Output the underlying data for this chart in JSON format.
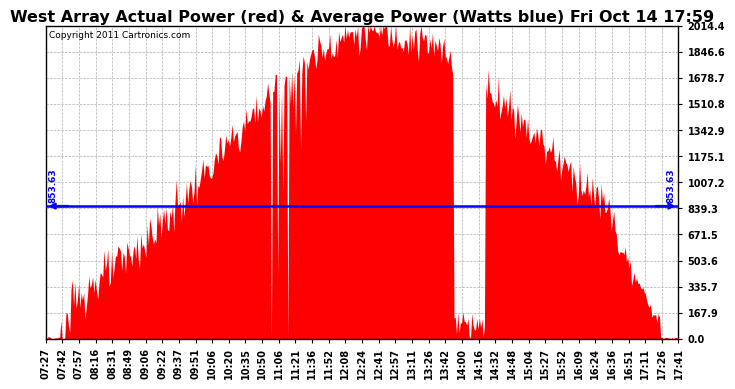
{
  "title": "West Array Actual Power (red) & Average Power (Watts blue) Fri Oct 14 17:59",
  "copyright": "Copyright 2011 Cartronics.com",
  "average_power": 853.63,
  "y_max": 2014.4,
  "y_ticks": [
    0.0,
    167.9,
    335.7,
    503.6,
    671.5,
    839.3,
    1007.2,
    1175.1,
    1342.9,
    1510.8,
    1678.7,
    1846.6,
    2014.4
  ],
  "x_labels": [
    "07:27",
    "07:42",
    "07:57",
    "08:16",
    "08:31",
    "08:49",
    "09:06",
    "09:22",
    "09:37",
    "09:51",
    "10:06",
    "10:20",
    "10:35",
    "10:50",
    "11:06",
    "11:21",
    "11:36",
    "11:52",
    "12:08",
    "12:24",
    "12:41",
    "12:57",
    "13:11",
    "13:26",
    "13:42",
    "14:00",
    "14:16",
    "14:32",
    "14:48",
    "15:04",
    "15:27",
    "15:52",
    "16:09",
    "16:24",
    "16:36",
    "16:51",
    "17:11",
    "17:26",
    "17:41"
  ],
  "fill_color": "#FF0000",
  "line_color": "#0000FF",
  "bg_color": "#FFFFFF",
  "grid_color": "#AAAAAA",
  "title_fontsize": 11.5,
  "label_fontsize": 7.0,
  "copyright_fontsize": 6.5
}
